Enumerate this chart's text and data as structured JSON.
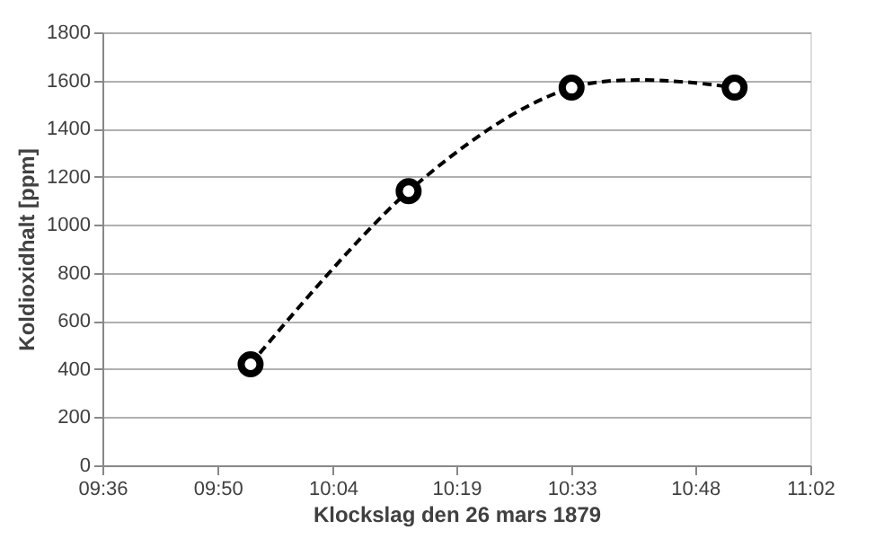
{
  "chart_data": {
    "type": "line",
    "xlabel": "Klockslag den 26 mars 1879",
    "ylabel": "Koldioxidhalt [ppm]",
    "x": [
      9.9,
      10.22,
      10.55,
      10.88
    ],
    "series": [
      {
        "color": "#000000",
        "values": [
          420,
          1140,
          1570,
          1570
        ]
      }
    ],
    "xlim": [
      9.6,
      11.0333
    ],
    "xticks": [
      {
        "value": 9.6,
        "label": "09:36"
      },
      {
        "value": 9.8333,
        "label": "09:50"
      },
      {
        "value": 10.0667,
        "label": "10:04"
      },
      {
        "value": 10.3167,
        "label": "10:19"
      },
      {
        "value": 10.55,
        "label": "10:33"
      },
      {
        "value": 10.8,
        "label": "10:48"
      },
      {
        "value": 11.0333,
        "label": "11:02"
      }
    ],
    "ylim": [
      0,
      1800
    ],
    "yticks": [
      0,
      200,
      400,
      600,
      800,
      1000,
      1200,
      1400,
      1600,
      1800
    ],
    "grid": "y",
    "marker": "circle",
    "line_style": "dashed"
  }
}
